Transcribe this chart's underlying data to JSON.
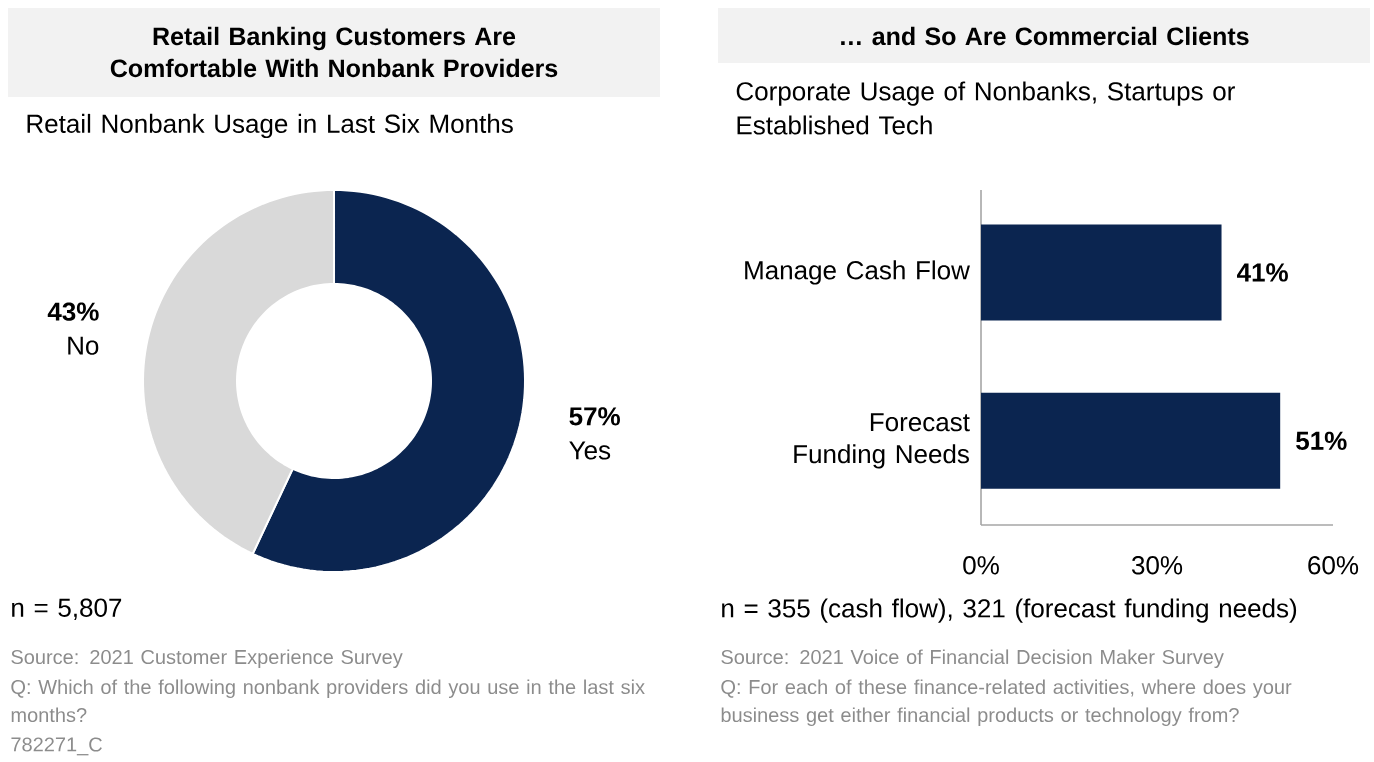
{
  "chart_data": [
    {
      "type": "donut",
      "title": "Retail Banking Customers Are Comfortable With Nonbank Providers",
      "subtitle": "Retail Nonbank Usage in Last Six Months",
      "categories": [
        "Yes",
        "No"
      ],
      "values": [
        57,
        43
      ],
      "colors": [
        "#0b2550",
        "#d9d9d9"
      ],
      "value_labels": [
        "57%",
        "43%"
      ],
      "annotations": [
        "n = 5,807",
        "Source: 2021 Customer Experience Survey",
        "Q: Which of the following nonbank providers did you use in the last six months?",
        "782271_C"
      ]
    },
    {
      "type": "bar",
      "orientation": "horizontal",
      "title": "… and So Are Commercial Clients",
      "subtitle": "Corporate Usage of Nonbanks, Startups or Established Tech",
      "categories": [
        "Manage Cash Flow",
        "Forecast Funding Needs"
      ],
      "values": [
        41,
        51
      ],
      "color": "#0b2550",
      "value_labels": [
        "41%",
        "51%"
      ],
      "xlim": [
        0,
        60
      ],
      "xticks": [
        {
          "value": 0,
          "label": "0%"
        },
        {
          "value": 30,
          "label": "30%"
        },
        {
          "value": 60,
          "label": "60%"
        }
      ],
      "annotations": [
        "n = 355 (cash flow), 321 (forecast funding needs)",
        "Source: 2021 Voice of Financial Decision Maker Survey",
        "Q: For each of these finance-related activities, where does your business get either financial products or technology from?"
      ]
    }
  ]
}
